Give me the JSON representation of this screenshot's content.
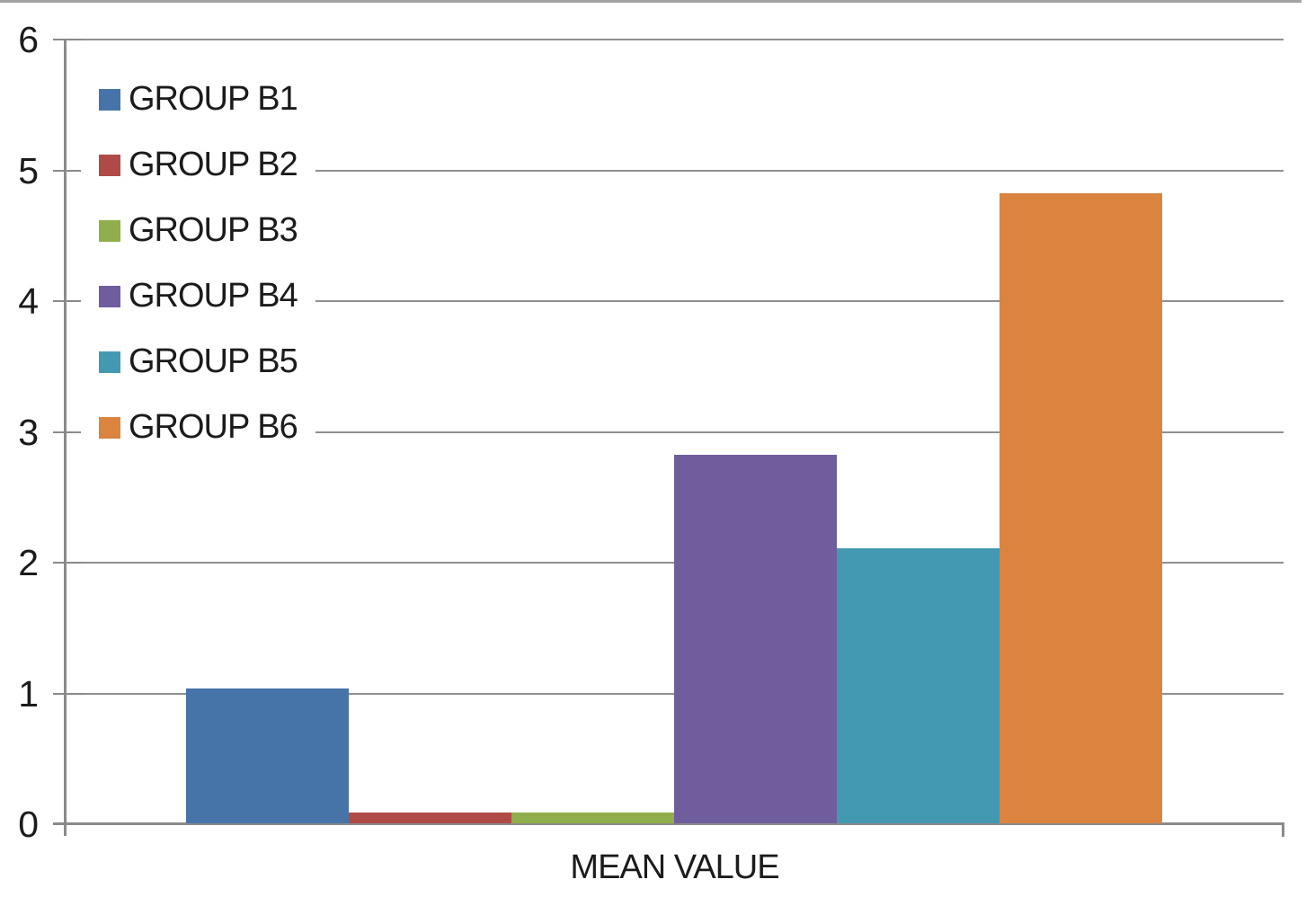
{
  "chart_data": {
    "type": "bar",
    "title": "",
    "xlabel": "MEAN VALUE",
    "ylabel": "",
    "categories": [
      "MEAN VALUE"
    ],
    "series": [
      {
        "name": "GROUP B1",
        "value": 1.03,
        "color": "#4674a9"
      },
      {
        "name": "GROUP B2",
        "value": 0.08,
        "color": "#b04a47"
      },
      {
        "name": "GROUP B3",
        "value": 0.08,
        "color": "#90ae4c"
      },
      {
        "name": "GROUP B4",
        "value": 2.82,
        "color": "#705d9d"
      },
      {
        "name": "GROUP B5",
        "value": 2.1,
        "color": "#4499b2"
      },
      {
        "name": "GROUP B6",
        "value": 4.82,
        "color": "#da8440"
      }
    ],
    "ylim": [
      0,
      6
    ],
    "yticks": [
      0,
      1,
      2,
      3,
      4,
      5,
      6
    ],
    "grid": true,
    "legend_position": "upper-left-overlay",
    "bar_gap": 0
  },
  "colors": {
    "background": "#ffffff",
    "gridline": "#8f8f8f",
    "axis": "#8a8a8a",
    "outer_border": "#a2a2a2",
    "text": "#1b1b1b"
  }
}
